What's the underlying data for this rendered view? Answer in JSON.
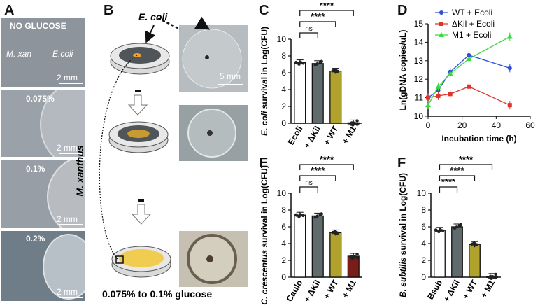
{
  "panel_letters": [
    "A",
    "B",
    "C",
    "D",
    "E",
    "F"
  ],
  "panelA": {
    "tiles": [
      {
        "label": "NO GLUCOSE",
        "left_label": "M. xan",
        "right_label": "E.coli",
        "scale": "2 mm"
      },
      {
        "label": "0.075%",
        "scale": "2 mm"
      },
      {
        "label": "0.1%",
        "scale": "2 mm"
      },
      {
        "label": "0.2%",
        "scale": "2 mm"
      }
    ]
  },
  "panelB": {
    "ecoli_label": "E. coli",
    "mxanthus_label": "M. xanthus",
    "photo_scale": "5 mm",
    "glucose_label": "0.075% to 0.1% glucose"
  },
  "colors": {
    "white_bar": "#ffffff",
    "gray_bar": "#5f6b6c",
    "wt_bar": "#b0a22c",
    "m1_bar": "#7a1c18",
    "wt_line": "#2f4fd6",
    "kil_line": "#e0342a",
    "m1_line": "#3bd93b"
  },
  "chart_data": [
    {
      "id": "C",
      "type": "bar",
      "ylabel_italic": "E. coli",
      "ylabel_rest": " survival in Log(CFU)",
      "categories": [
        "Ecoli",
        "+ ΔKil",
        "+ WT",
        "+ M1"
      ],
      "values": [
        7.2,
        7.1,
        6.2,
        0.05
      ],
      "ylim": [
        0,
        10
      ],
      "yticks": [
        "0",
        "2",
        "4",
        "6",
        "8",
        "10"
      ],
      "brackets": [
        {
          "to": 1,
          "label": "ns"
        },
        {
          "to": 2,
          "label": "****"
        },
        {
          "to": 3,
          "label": "****"
        }
      ]
    },
    {
      "id": "D",
      "type": "line",
      "ylabel": "Ln(gDNA copies/uL)",
      "xlabel": "Incubation time (h)",
      "xlim": [
        0,
        60
      ],
      "ylim": [
        10,
        15
      ],
      "xticks": [
        "0",
        "20",
        "40",
        "60"
      ],
      "yticks": [
        "10",
        "11",
        "12",
        "13",
        "14",
        "15"
      ],
      "x": [
        0,
        6,
        13,
        24,
        48
      ],
      "series": [
        {
          "name": "WT + Ecoli",
          "values": [
            11.0,
            11.4,
            12.4,
            13.3,
            12.6
          ]
        },
        {
          "name": "ΔKil + Ecoli",
          "values": [
            11.0,
            11.1,
            11.2,
            11.6,
            10.6
          ]
        },
        {
          "name": "M1 + Ecoli",
          "values": [
            10.6,
            11.6,
            12.3,
            13.1,
            14.3
          ]
        }
      ]
    },
    {
      "id": "E",
      "type": "bar",
      "ylabel_italic": "C. crescentus",
      "ylabel_rest": " survival in Log(CFU)",
      "categories": [
        "Caulo",
        "+ ΔKil",
        "+ WT",
        "+ M1"
      ],
      "values": [
        7.4,
        7.3,
        5.3,
        2.5
      ],
      "ylim": [
        0,
        10
      ],
      "yticks": [
        "0",
        "2",
        "4",
        "6",
        "8",
        "10"
      ],
      "brackets": [
        {
          "to": 1,
          "label": "ns"
        },
        {
          "to": 2,
          "label": "****"
        },
        {
          "to": 3,
          "label": "****"
        }
      ]
    },
    {
      "id": "F",
      "type": "bar",
      "ylabel_italic": "B. subtilis",
      "ylabel_rest": " survival in Log(CFU)",
      "categories": [
        "Bsub",
        "+ ΔKil",
        "+ WT",
        "+ M1"
      ],
      "values": [
        5.6,
        6.0,
        3.9,
        0.1
      ],
      "ylim": [
        0,
        10
      ],
      "yticks": [
        "0",
        "2",
        "4",
        "6",
        "8",
        "10"
      ],
      "brackets": [
        {
          "to": 1,
          "label": "****"
        },
        {
          "to": 2,
          "label": "****"
        },
        {
          "to": 3,
          "label": "****"
        }
      ]
    }
  ]
}
